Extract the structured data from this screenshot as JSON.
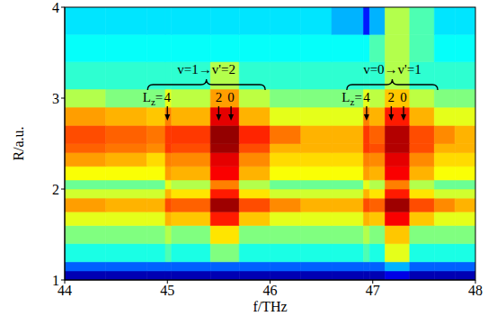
{
  "chart_data": {
    "type": "heatmap",
    "xlabel": "f/THz",
    "ylabel": "R/a.u.",
    "xlim": [
      44,
      48
    ],
    "ylim": [
      1,
      4
    ],
    "xticks": [
      44,
      45,
      46,
      47,
      48
    ],
    "yticks": [
      1,
      2,
      3,
      4
    ],
    "zlim": [
      0,
      1
    ],
    "x_edges": [
      44,
      44.4,
      44.8,
      44.98,
      45.04,
      45.42,
      45.7,
      46.0,
      46.3,
      46.6,
      46.91,
      46.97,
      47.12,
      47.36,
      47.6,
      47.8,
      48
    ],
    "y_edges": [
      1,
      1.1,
      1.2,
      1.4,
      1.6,
      1.75,
      1.9,
      2.0,
      2.1,
      2.25,
      2.4,
      2.5,
      2.7,
      2.9,
      3.1,
      3.4,
      3.7,
      4
    ],
    "z": [
      [
        0.05,
        0.05,
        0.05,
        0.05,
        0.05,
        0.05,
        0.05,
        0.05,
        0.05,
        0.05,
        0.05,
        0.05,
        0.1,
        0.05,
        0.05,
        0.05
      ],
      [
        0.22,
        0.22,
        0.22,
        0.22,
        0.22,
        0.22,
        0.22,
        0.22,
        0.22,
        0.22,
        0.22,
        0.22,
        0.3,
        0.22,
        0.22,
        0.22
      ],
      [
        0.4,
        0.4,
        0.4,
        0.45,
        0.4,
        0.5,
        0.4,
        0.4,
        0.4,
        0.4,
        0.45,
        0.4,
        0.6,
        0.4,
        0.4,
        0.4
      ],
      [
        0.5,
        0.5,
        0.5,
        0.55,
        0.5,
        0.65,
        0.5,
        0.5,
        0.5,
        0.5,
        0.55,
        0.5,
        0.68,
        0.5,
        0.5,
        0.5
      ],
      [
        0.6,
        0.6,
        0.6,
        0.7,
        0.68,
        0.85,
        0.68,
        0.6,
        0.6,
        0.6,
        0.7,
        0.68,
        0.88,
        0.68,
        0.6,
        0.6
      ],
      [
        0.72,
        0.7,
        0.7,
        0.8,
        0.78,
        0.97,
        0.8,
        0.74,
        0.7,
        0.7,
        0.8,
        0.78,
        0.97,
        0.8,
        0.74,
        0.7
      ],
      [
        0.58,
        0.58,
        0.58,
        0.7,
        0.65,
        0.85,
        0.65,
        0.58,
        0.58,
        0.58,
        0.7,
        0.65,
        0.85,
        0.65,
        0.58,
        0.58
      ],
      [
        0.48,
        0.48,
        0.48,
        0.6,
        0.55,
        0.75,
        0.55,
        0.48,
        0.48,
        0.48,
        0.6,
        0.55,
        0.75,
        0.55,
        0.48,
        0.48
      ],
      [
        0.62,
        0.62,
        0.62,
        0.72,
        0.7,
        0.88,
        0.7,
        0.62,
        0.62,
        0.62,
        0.72,
        0.7,
        0.88,
        0.7,
        0.62,
        0.62
      ],
      [
        0.72,
        0.7,
        0.66,
        0.75,
        0.74,
        0.9,
        0.74,
        0.66,
        0.66,
        0.66,
        0.75,
        0.74,
        0.9,
        0.74,
        0.66,
        0.66
      ],
      [
        0.78,
        0.76,
        0.74,
        0.82,
        0.8,
        0.97,
        0.8,
        0.7,
        0.7,
        0.7,
        0.82,
        0.8,
        0.95,
        0.8,
        0.7,
        0.7
      ],
      [
        0.8,
        0.78,
        0.76,
        0.82,
        0.82,
        0.98,
        0.84,
        0.76,
        0.7,
        0.7,
        0.82,
        0.78,
        0.95,
        0.8,
        0.74,
        0.7
      ],
      [
        0.72,
        0.7,
        0.68,
        0.75,
        0.7,
        0.9,
        0.7,
        0.6,
        0.6,
        0.6,
        0.75,
        0.7,
        0.85,
        0.7,
        0.6,
        0.6
      ],
      [
        0.55,
        0.5,
        0.5,
        0.6,
        0.56,
        0.72,
        0.56,
        0.5,
        0.5,
        0.5,
        0.6,
        0.56,
        0.68,
        0.56,
        0.5,
        0.5
      ],
      [
        0.42,
        0.42,
        0.42,
        0.42,
        0.42,
        0.55,
        0.42,
        0.42,
        0.42,
        0.42,
        0.42,
        0.42,
        0.55,
        0.42,
        0.42,
        0.42
      ],
      [
        0.38,
        0.38,
        0.38,
        0.38,
        0.38,
        0.38,
        0.38,
        0.38,
        0.38,
        0.38,
        0.38,
        0.45,
        0.55,
        0.45,
        0.38,
        0.38
      ],
      [
        0.35,
        0.35,
        0.35,
        0.35,
        0.35,
        0.35,
        0.35,
        0.35,
        0.35,
        0.3,
        0.15,
        0.3,
        0.55,
        0.45,
        0.35,
        0.35
      ]
    ],
    "lz_label": {
      "symbol": "L",
      "subscript": "z",
      "equals": "="
    },
    "annotations": [
      {
        "text": "v=1→v'=2",
        "lines": [
          {
            "lz": 4,
            "f": 45.0
          },
          {
            "lz": 2,
            "f": 45.5
          },
          {
            "lz": 0,
            "f": 45.62
          }
        ]
      },
      {
        "text": "v=0→v'=1",
        "lines": [
          {
            "lz": 4,
            "f": 46.94
          },
          {
            "lz": 2,
            "f": 47.18
          },
          {
            "lz": 0,
            "f": 47.3
          }
        ]
      }
    ]
  }
}
